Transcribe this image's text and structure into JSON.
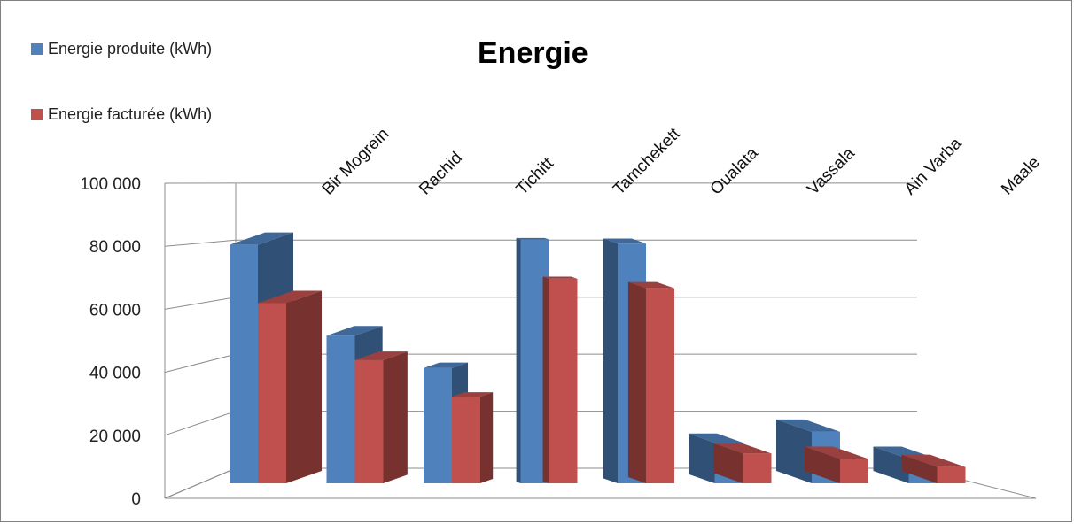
{
  "chart_data": {
    "type": "bar",
    "title": "Energie",
    "categories": [
      "Bir Mogrein",
      "Rachid",
      "Tichitt",
      "Tamchekett",
      "Oualata",
      "Vassala",
      "Ain Varba",
      "Maale"
    ],
    "series": [
      {
        "name": "Energie produite (kWh)",
        "color": "#4F81BD",
        "values": [
          88000,
          54500,
          42500,
          90000,
          88500,
          15000,
          19000,
          9000
        ]
      },
      {
        "name": "Energie facturée (kWh)",
        "color": "#C0504D",
        "values": [
          66500,
          45500,
          32000,
          75500,
          72000,
          11000,
          9000,
          6000
        ]
      }
    ],
    "y_ticks": [
      "0",
      "20 000",
      "40 000",
      "60 000",
      "80 000",
      "100 000"
    ],
    "ylim": [
      0,
      100000
    ],
    "grid": true,
    "legend_position": "top-left",
    "three_d": true
  }
}
